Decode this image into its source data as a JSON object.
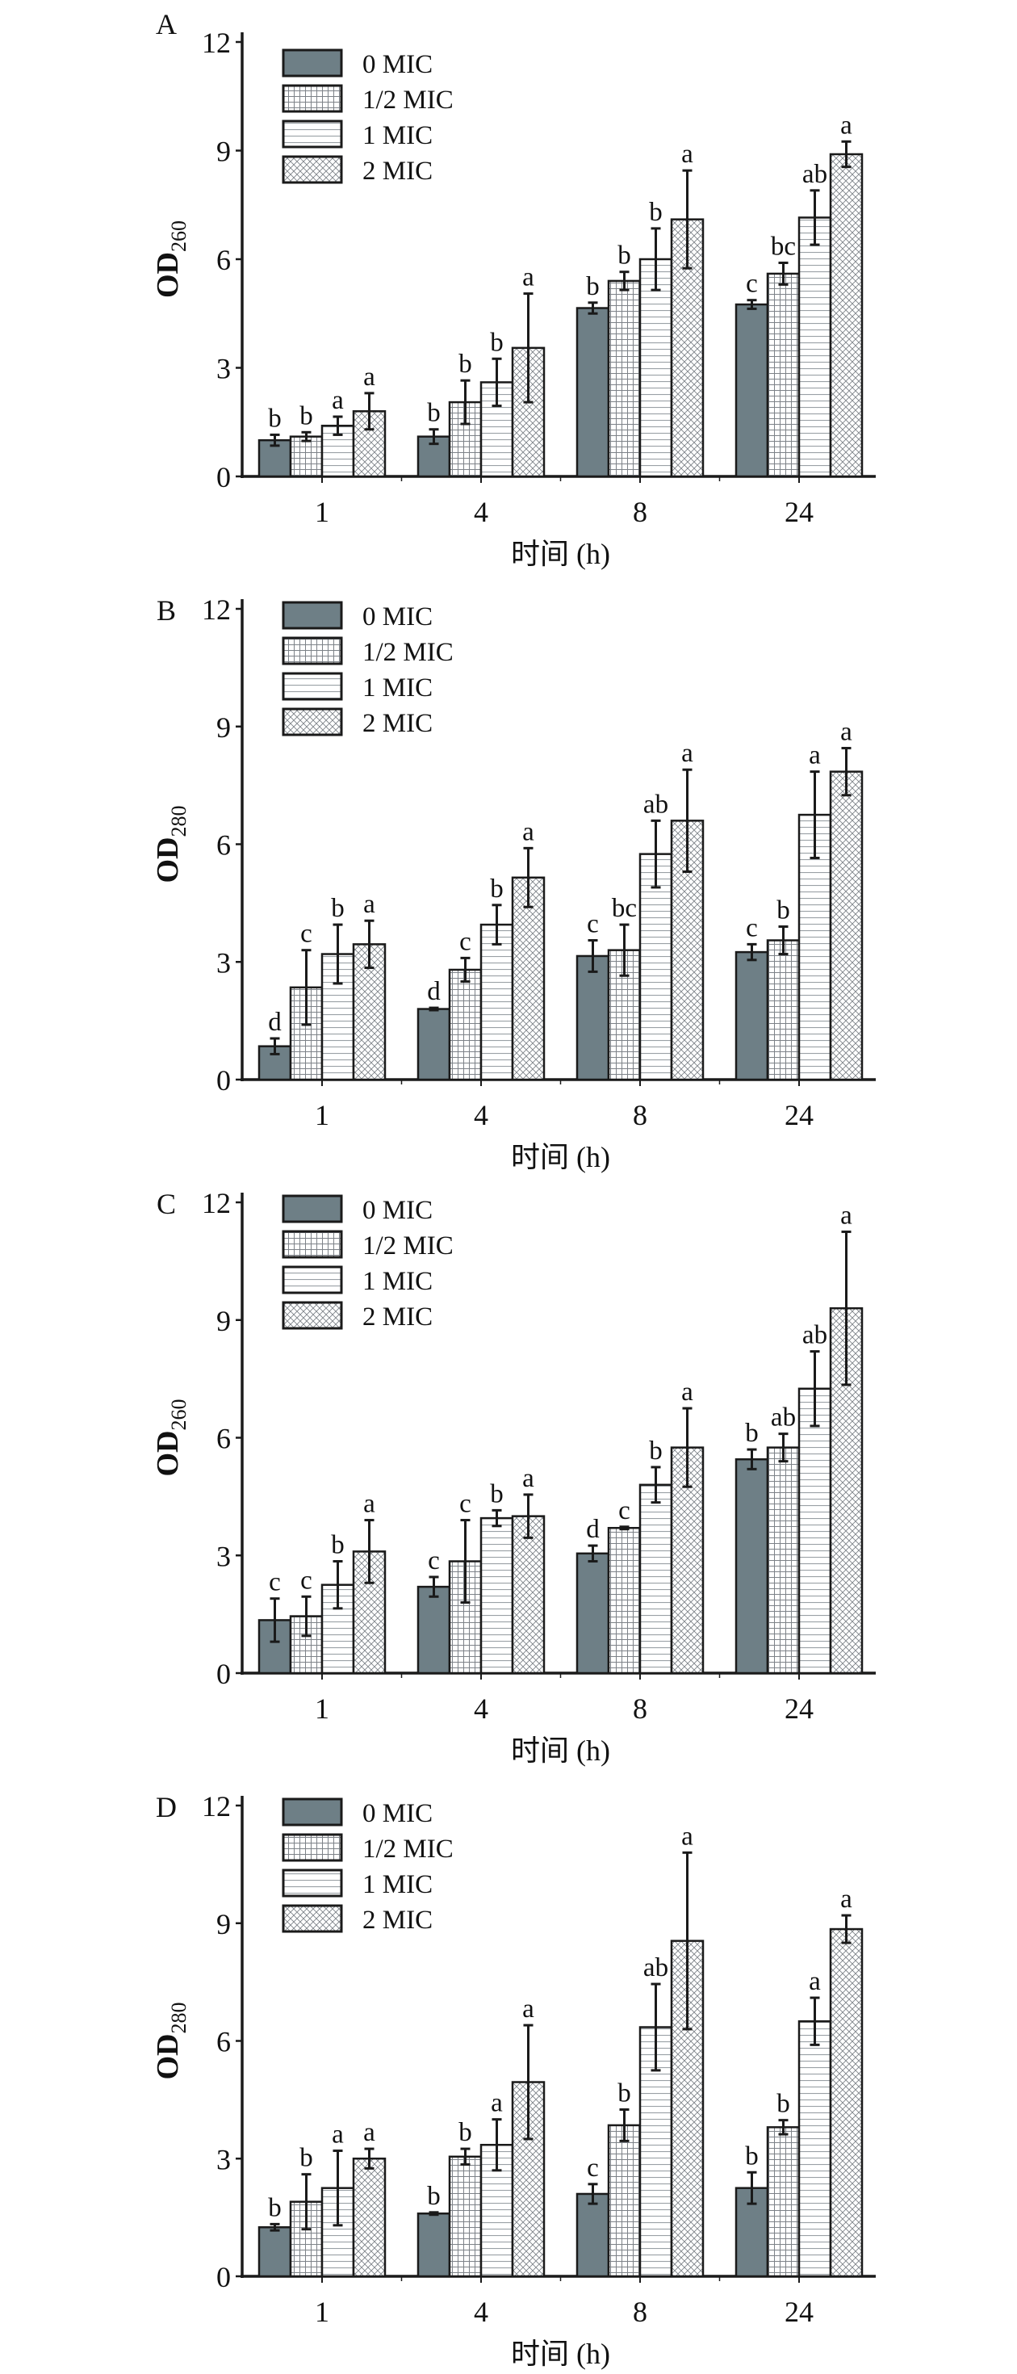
{
  "colors": {
    "control": "#6e7f86",
    "stroke": "#1a1a1a",
    "pattern": "#8a8f94"
  },
  "legend": [
    "0 MIC",
    "1/2 MIC",
    "1 MIC",
    "2 MIC"
  ],
  "chart_data": [
    {
      "panel": "A",
      "type": "bar",
      "ylabel": "OD",
      "ylabel_sub": "260",
      "xlabel": "时间 (h)",
      "categories": [
        "1",
        "4",
        "8",
        "24"
      ],
      "ylim": [
        0,
        12
      ],
      "yticks": [
        "0",
        "3",
        "6",
        "9",
        "12"
      ],
      "series": [
        {
          "name": "0 MIC",
          "values": [
            1.0,
            1.1,
            4.65,
            4.75
          ],
          "errors": [
            0.15,
            0.2,
            0.15,
            0.12
          ],
          "letters": [
            "b",
            "b",
            "b",
            "c"
          ]
        },
        {
          "name": "1/2 MIC",
          "values": [
            1.1,
            2.05,
            5.4,
            5.6
          ],
          "errors": [
            0.12,
            0.6,
            0.25,
            0.3
          ],
          "letters": [
            "b",
            "b",
            "b",
            "bc"
          ]
        },
        {
          "name": "1 MIC",
          "values": [
            1.4,
            2.6,
            6.0,
            7.15
          ],
          "errors": [
            0.25,
            0.65,
            0.85,
            0.75
          ],
          "letters": [
            "a",
            "b",
            "b",
            "ab"
          ]
        },
        {
          "name": "2 MIC",
          "values": [
            1.8,
            3.55,
            7.1,
            8.9
          ],
          "errors": [
            0.5,
            1.5,
            1.35,
            0.35
          ],
          "letters": [
            "a",
            "a",
            "a",
            "a"
          ]
        }
      ]
    },
    {
      "panel": "B",
      "type": "bar",
      "ylabel": "OD",
      "ylabel_sub": "280",
      "xlabel": "时间 (h)",
      "categories": [
        "1",
        "4",
        "8",
        "24"
      ],
      "ylim": [
        0,
        12
      ],
      "yticks": [
        "0",
        "3",
        "6",
        "9",
        "12"
      ],
      "series": [
        {
          "name": "0 MIC",
          "values": [
            0.85,
            1.8,
            3.15,
            3.25
          ],
          "errors": [
            0.2,
            0.03,
            0.4,
            0.2
          ],
          "letters": [
            "d",
            "d",
            "c",
            "c"
          ]
        },
        {
          "name": "1/2 MIC",
          "values": [
            2.35,
            2.8,
            3.3,
            3.55
          ],
          "errors": [
            0.95,
            0.3,
            0.65,
            0.35
          ],
          "letters": [
            "c",
            "c",
            "bc",
            "b"
          ]
        },
        {
          "name": "1 MIC",
          "values": [
            3.2,
            3.95,
            5.75,
            6.75
          ],
          "errors": [
            0.75,
            0.5,
            0.85,
            1.1
          ],
          "letters": [
            "b",
            "b",
            "ab",
            "a"
          ]
        },
        {
          "name": "2 MIC",
          "values": [
            3.45,
            5.15,
            6.6,
            7.85
          ],
          "errors": [
            0.6,
            0.75,
            1.3,
            0.6
          ],
          "letters": [
            "a",
            "a",
            "a",
            "a"
          ]
        }
      ]
    },
    {
      "panel": "C",
      "type": "bar",
      "ylabel": "OD",
      "ylabel_sub": "260",
      "xlabel": "时间 (h)",
      "categories": [
        "1",
        "4",
        "8",
        "24"
      ],
      "ylim": [
        0,
        12
      ],
      "yticks": [
        "0",
        "3",
        "6",
        "9",
        "12"
      ],
      "series": [
        {
          "name": "0 MIC",
          "values": [
            1.35,
            2.2,
            3.05,
            5.45
          ],
          "errors": [
            0.55,
            0.25,
            0.2,
            0.25
          ],
          "letters": [
            "c",
            "c",
            "d",
            "b"
          ]
        },
        {
          "name": "1/2 MIC",
          "values": [
            1.45,
            2.85,
            3.7,
            5.75
          ],
          "errors": [
            0.5,
            1.05,
            0.03,
            0.35
          ],
          "letters": [
            "c",
            "c",
            "c",
            "ab"
          ]
        },
        {
          "name": "1 MIC",
          "values": [
            2.25,
            3.95,
            4.8,
            7.25
          ],
          "errors": [
            0.6,
            0.2,
            0.45,
            0.95
          ],
          "letters": [
            "b",
            "b",
            "b",
            "ab"
          ]
        },
        {
          "name": "2 MIC",
          "values": [
            3.1,
            4.0,
            5.75,
            9.3
          ],
          "errors": [
            0.8,
            0.55,
            1.0,
            1.95
          ],
          "letters": [
            "a",
            "a",
            "a",
            "a"
          ]
        }
      ]
    },
    {
      "panel": "D",
      "type": "bar",
      "ylabel": "OD",
      "ylabel_sub": "280",
      "xlabel": "时间 (h)",
      "categories": [
        "1",
        "4",
        "8",
        "24"
      ],
      "ylim": [
        0,
        12
      ],
      "yticks": [
        "0",
        "3",
        "6",
        "9",
        "12"
      ],
      "series": [
        {
          "name": "0 MIC",
          "values": [
            1.25,
            1.6,
            2.1,
            2.25
          ],
          "errors": [
            0.08,
            0.03,
            0.25,
            0.4
          ],
          "letters": [
            "b",
            "b",
            "c",
            "b"
          ]
        },
        {
          "name": "1/2 MIC",
          "values": [
            1.9,
            3.05,
            3.85,
            3.8
          ],
          "errors": [
            0.7,
            0.2,
            0.4,
            0.18
          ],
          "letters": [
            "b",
            "b",
            "b",
            "b"
          ]
        },
        {
          "name": "1 MIC",
          "values": [
            2.25,
            3.35,
            6.35,
            6.5
          ],
          "errors": [
            0.95,
            0.65,
            1.1,
            0.6
          ],
          "letters": [
            "a",
            "a",
            "ab",
            "a"
          ]
        },
        {
          "name": "2 MIC",
          "values": [
            3.0,
            4.95,
            8.55,
            8.85
          ],
          "errors": [
            0.25,
            1.45,
            2.25,
            0.35
          ],
          "letters": [
            "a",
            "a",
            "a",
            "a"
          ]
        }
      ]
    }
  ]
}
